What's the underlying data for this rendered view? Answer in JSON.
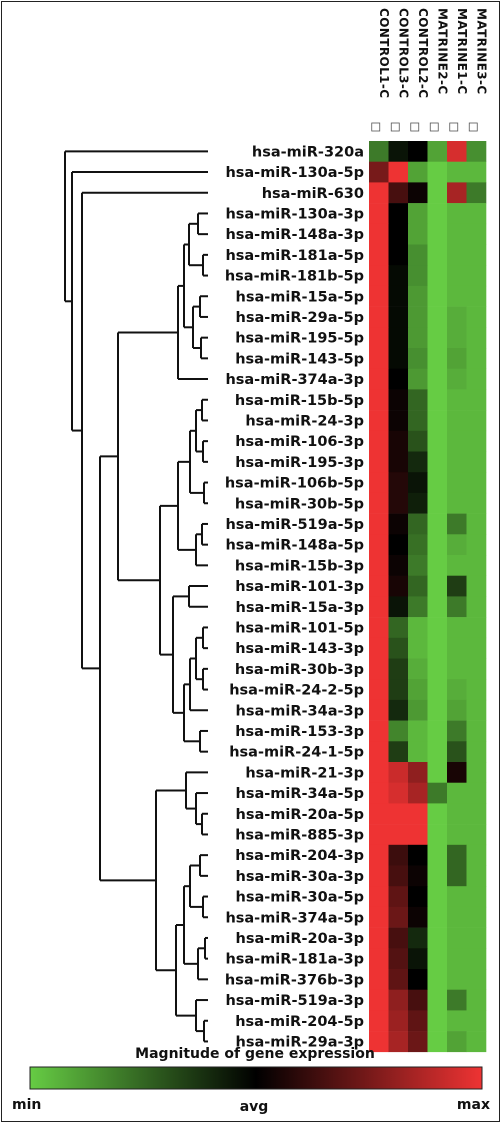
{
  "chart_data": {
    "type": "heatmap",
    "columns": [
      "CONTROL1-C",
      "CONTROL3-C",
      "CONTROL2-C",
      "MATRINE2-C",
      "MATRINE1-C",
      "MATRINE3-C"
    ],
    "rows": [
      "hsa-miR-320a",
      "hsa-miR-130a-5p",
      "hsa-miR-630",
      "hsa-miR-130a-3p",
      "hsa-miR-148a-3p",
      "hsa-miR-181a-5p",
      "hsa-miR-181b-5p",
      "hsa-miR-15a-5p",
      "hsa-miR-29a-5p",
      "hsa-miR-195-5p",
      "hsa-miR-143-5p",
      "hsa-miR-374a-3p",
      "hsa-miR-15b-5p",
      "hsa-miR-24-3p",
      "hsa-miR-106-3p",
      "hsa-miR-195-3p",
      "hsa-miR-106b-5p",
      "hsa-miR-30b-5p",
      "hsa-miR-519a-5p",
      "hsa-miR-148a-5p",
      "hsa-miR-15b-3p",
      "hsa-miR-101-3p",
      "hsa-miR-15a-3p",
      "hsa-miR-101-5p",
      "hsa-miR-143-3p",
      "hsa-miR-30b-3p",
      "hsa-miR-24-2-5p",
      "hsa-miR-34a-3p",
      "hsa-miR-153-3p",
      "hsa-miR-24-1-5p",
      "hsa-miR-21-3p",
      "hsa-miR-34a-5p",
      "hsa-miR-20a-5p",
      "hsa-miR-885-3p",
      "hsa-miR-204-3p",
      "hsa-miR-30a-3p",
      "hsa-miR-30a-5p",
      "hsa-miR-374a-5p",
      "hsa-miR-20a-3p",
      "hsa-miR-181a-3p",
      "hsa-miR-376b-3p",
      "hsa-miR-519a-3p",
      "hsa-miR-204-5p",
      "hsa-miR-29a-3p"
    ],
    "values": [
      [
        -0.6,
        -0.1,
        0.0,
        -0.8,
        0.9,
        -0.7
      ],
      [
        0.5,
        1.0,
        -0.8,
        -1.0,
        -0.9,
        -0.9
      ],
      [
        1.0,
        0.3,
        0.05,
        -1.0,
        0.7,
        -0.6
      ],
      [
        1.0,
        0.0,
        -0.8,
        -1.0,
        -0.9,
        -0.9
      ],
      [
        1.0,
        0.0,
        -0.8,
        -1.0,
        -0.9,
        -0.9
      ],
      [
        1.0,
        0.0,
        -0.7,
        -1.0,
        -0.9,
        -0.9
      ],
      [
        1.0,
        -0.05,
        -0.7,
        -1.0,
        -0.9,
        -0.9
      ],
      [
        1.0,
        -0.05,
        -0.75,
        -1.0,
        -0.9,
        -0.9
      ],
      [
        1.0,
        -0.05,
        -0.75,
        -1.0,
        -0.85,
        -0.9
      ],
      [
        1.0,
        -0.05,
        -0.75,
        -1.0,
        -0.85,
        -0.9
      ],
      [
        1.0,
        -0.05,
        -0.7,
        -1.0,
        -0.8,
        -0.9
      ],
      [
        1.0,
        0.0,
        -0.75,
        -1.0,
        -0.85,
        -0.9
      ],
      [
        1.0,
        0.05,
        -0.5,
        -1.0,
        -0.9,
        -0.9
      ],
      [
        1.0,
        0.05,
        -0.5,
        -1.0,
        -0.9,
        -0.9
      ],
      [
        1.0,
        0.1,
        -0.4,
        -1.0,
        -0.9,
        -0.9
      ],
      [
        1.0,
        0.1,
        -0.2,
        -1.0,
        -0.9,
        -0.9
      ],
      [
        1.0,
        0.15,
        -0.1,
        -1.0,
        -0.9,
        -0.9
      ],
      [
        1.0,
        0.15,
        -0.15,
        -1.0,
        -0.9,
        -0.9
      ],
      [
        1.0,
        0.05,
        -0.5,
        -1.0,
        -0.6,
        -0.9
      ],
      [
        1.0,
        0.0,
        -0.55,
        -1.0,
        -0.85,
        -0.9
      ],
      [
        1.0,
        0.05,
        -0.6,
        -1.0,
        -0.9,
        -0.9
      ],
      [
        1.0,
        0.1,
        -0.5,
        -1.0,
        -0.3,
        -0.9
      ],
      [
        1.0,
        -0.1,
        -0.6,
        -1.0,
        -0.6,
        -0.9
      ],
      [
        1.0,
        -0.5,
        -0.9,
        -1.0,
        -0.9,
        -0.9
      ],
      [
        1.0,
        -0.4,
        -0.9,
        -1.0,
        -0.9,
        -0.9
      ],
      [
        1.0,
        -0.3,
        -0.85,
        -1.0,
        -0.9,
        -0.9
      ],
      [
        1.0,
        -0.3,
        -0.8,
        -1.0,
        -0.85,
        -0.9
      ],
      [
        1.0,
        -0.2,
        -0.75,
        -1.0,
        -0.8,
        -0.9
      ],
      [
        1.0,
        -0.65,
        -0.9,
        -1.0,
        -0.6,
        -0.9
      ],
      [
        1.0,
        -0.3,
        -0.9,
        -1.0,
        -0.4,
        -0.9
      ],
      [
        1.0,
        0.85,
        0.6,
        -1.0,
        0.1,
        -0.9
      ],
      [
        1.0,
        0.9,
        0.7,
        -0.6,
        -0.9,
        -0.9
      ],
      [
        1.0,
        1.0,
        1.0,
        -1.0,
        -0.9,
        -0.9
      ],
      [
        1.0,
        1.0,
        1.0,
        -1.0,
        -0.9,
        -0.9
      ],
      [
        1.0,
        0.25,
        0.0,
        -1.0,
        -0.5,
        -0.9
      ],
      [
        1.0,
        0.3,
        0.05,
        -1.0,
        -0.5,
        -0.9
      ],
      [
        1.0,
        0.4,
        0.0,
        -1.0,
        -0.9,
        -0.9
      ],
      [
        1.0,
        0.45,
        0.05,
        -1.0,
        -0.9,
        -0.9
      ],
      [
        1.0,
        0.3,
        -0.2,
        -1.0,
        -0.9,
        -0.9
      ],
      [
        1.0,
        0.35,
        -0.1,
        -1.0,
        -0.9,
        -0.9
      ],
      [
        1.0,
        0.4,
        0.0,
        -1.0,
        -0.9,
        -0.9
      ],
      [
        1.0,
        0.6,
        0.3,
        -1.0,
        -0.6,
        -0.9
      ],
      [
        1.0,
        0.65,
        0.4,
        -1.0,
        -0.9,
        -0.9
      ],
      [
        1.0,
        0.7,
        0.45,
        -1.0,
        -0.8,
        -0.9
      ]
    ],
    "value_range": [
      -1,
      1
    ],
    "legend": {
      "title": "Magnitude of gene expression",
      "min_label": "min",
      "mid_label": "avg",
      "max_label": "max",
      "colors": [
        "#66cc44",
        "#000000",
        "#ee3333"
      ]
    },
    "dendrogram": "left"
  }
}
